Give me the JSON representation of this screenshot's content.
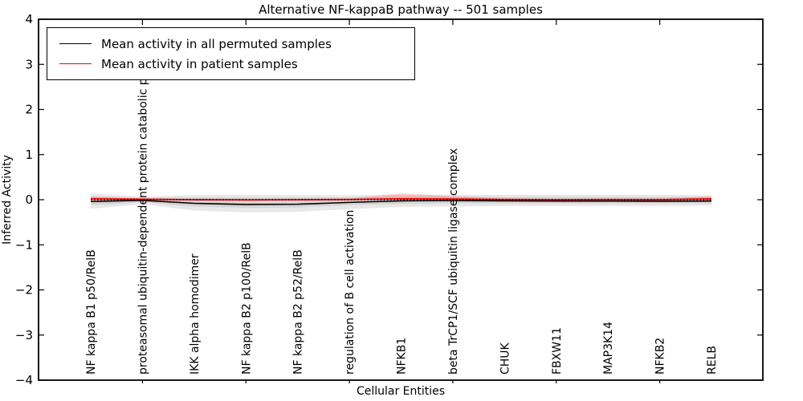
{
  "chart_data": {
    "type": "line",
    "title": "Alternative NF-kappaB pathway -- 501 samples",
    "xlabel": "Cellular Entities",
    "ylabel": "Inferred Activity",
    "ylim": [
      -4,
      4
    ],
    "ytick_values": [
      4,
      3,
      2,
      1,
      0,
      -1,
      -2,
      -3,
      -4
    ],
    "grid": false,
    "zero_line_style": "dotted",
    "legend": {
      "position": "upper left",
      "entries": [
        {
          "label": "Mean activity in all permuted samples",
          "color": "#000000"
        },
        {
          "label": "Mean activity in patient samples",
          "color": "#ff0000"
        }
      ]
    },
    "categories": [
      "NF kappa B1 p50/RelB",
      "proteasomal ubiquitin-dependent protein catabolic pr",
      "IKK alpha homodimer",
      "NF kappa B2 p100/RelB",
      "NF kappa B2 p52/RelB",
      "regulation of B cell activation",
      "NFKB1",
      "beta TrCP1/SCF ubiquitin ligase complex",
      "CHUK",
      "FBXW11",
      "MAP3K14",
      "NFKB2",
      "RELB"
    ],
    "series": [
      {
        "name": "Mean activity in all permuted samples",
        "color": "#000000",
        "values": [
          -0.04,
          -0.015,
          -0.08,
          -0.105,
          -0.1,
          -0.06,
          -0.025,
          -0.02,
          -0.025,
          -0.03,
          -0.03,
          -0.035,
          -0.03
        ]
      },
      {
        "name": "Mean activity in patient samples",
        "color": "#ff0000",
        "values": [
          0.02,
          0.01,
          0.0,
          -0.005,
          0.0,
          0.005,
          0.02,
          0.015,
          0.005,
          0.0,
          0.005,
          0.0,
          0.02
        ]
      }
    ],
    "bands": [
      {
        "name": "permuted-std-outer",
        "color": "rgba(0,0,0,0.09)",
        "upper": [
          0.14,
          0.07,
          0.1,
          0.11,
          0.1,
          0.1,
          0.11,
          0.11,
          0.11,
          0.11,
          0.11,
          0.11,
          0.1
        ],
        "lower": [
          -0.2,
          -0.1,
          -0.24,
          -0.28,
          -0.27,
          -0.21,
          -0.16,
          -0.15,
          -0.14,
          -0.14,
          -0.14,
          -0.14,
          -0.13
        ]
      },
      {
        "name": "permuted-std-inner",
        "color": "rgba(0,0,0,0.09)",
        "upper": [
          0.08,
          0.04,
          0.05,
          0.05,
          0.05,
          0.05,
          0.06,
          0.06,
          0.06,
          0.06,
          0.06,
          0.06,
          0.06
        ],
        "lower": [
          -0.12,
          -0.06,
          -0.15,
          -0.18,
          -0.17,
          -0.12,
          -0.09,
          -0.08,
          -0.08,
          -0.08,
          -0.08,
          -0.08,
          -0.08
        ]
      },
      {
        "name": "patient-std",
        "color": "rgba(255,0,0,0.18)",
        "upper": [
          0.06,
          0.03,
          0.02,
          0.02,
          0.02,
          0.03,
          0.14,
          0.08,
          0.03,
          0.02,
          0.02,
          0.03,
          0.07
        ],
        "lower": [
          -0.03,
          -0.01,
          -0.01,
          -0.02,
          -0.01,
          -0.01,
          0.0,
          -0.01,
          -0.01,
          -0.01,
          -0.01,
          -0.01,
          -0.02
        ]
      }
    ]
  }
}
